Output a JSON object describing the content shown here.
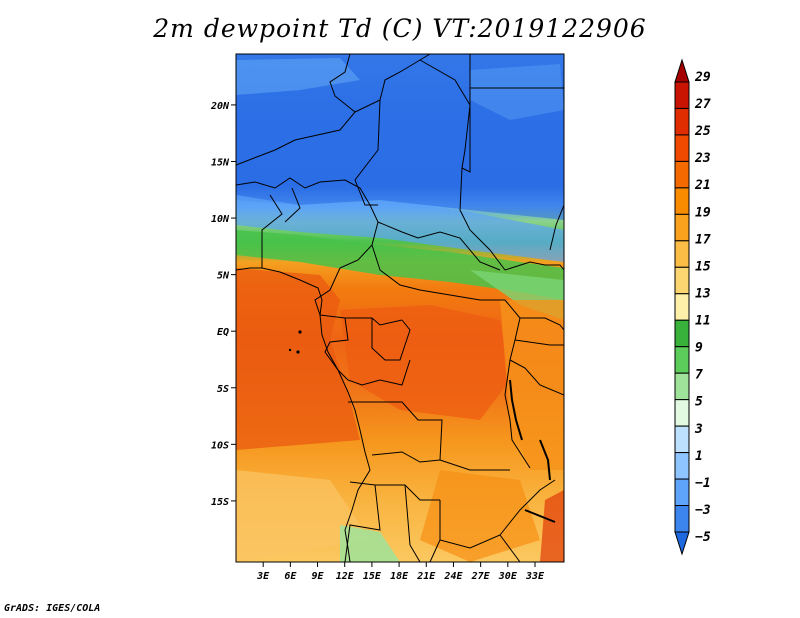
{
  "title": "2m dewpoint Td (C) VT:2019122906",
  "credit": "GrADS: IGES/COLA",
  "map": {
    "variable": "2m dewpoint",
    "units": "C",
    "valid_time": "2019122906",
    "lon_range": [
      0,
      36
    ],
    "lat_range": [
      -20,
      25
    ],
    "lat_ticks": [
      {
        "value": 20,
        "label": "20N"
      },
      {
        "value": 15,
        "label": "15N"
      },
      {
        "value": 10,
        "label": "10N"
      },
      {
        "value": 5,
        "label": "5N"
      },
      {
        "value": 0,
        "label": "EQ"
      },
      {
        "value": -5,
        "label": "5S"
      },
      {
        "value": -10,
        "label": "10S"
      },
      {
        "value": -15,
        "label": "15S"
      }
    ],
    "lon_ticks": [
      {
        "value": 3,
        "label": "3E"
      },
      {
        "value": 6,
        "label": "6E"
      },
      {
        "value": 9,
        "label": "9E"
      },
      {
        "value": 12,
        "label": "12E"
      },
      {
        "value": 15,
        "label": "15E"
      },
      {
        "value": 18,
        "label": "18E"
      },
      {
        "value": 21,
        "label": "21E"
      },
      {
        "value": 24,
        "label": "24E"
      },
      {
        "value": 27,
        "label": "27E"
      },
      {
        "value": 30,
        "label": "30E"
      },
      {
        "value": 33,
        "label": "33E"
      }
    ]
  },
  "colorbar": {
    "labels": [
      "29",
      "27",
      "25",
      "23",
      "21",
      "19",
      "17",
      "15",
      "13",
      "11",
      "9",
      "7",
      "5",
      "3",
      "1",
      "−1",
      "−3",
      "−5"
    ],
    "colors": [
      "#a50000",
      "#c81400",
      "#e02d00",
      "#f04a00",
      "#f56a00",
      "#f88b00",
      "#faa21e",
      "#fbbd45",
      "#fcd671",
      "#fef0a8",
      "#38b23a",
      "#5ccd5a",
      "#9fe39a",
      "#e2f9e2",
      "#bde0ff",
      "#8ec4ff",
      "#5fa4fb",
      "#3c85ee",
      "#1e68e0"
    ]
  }
}
